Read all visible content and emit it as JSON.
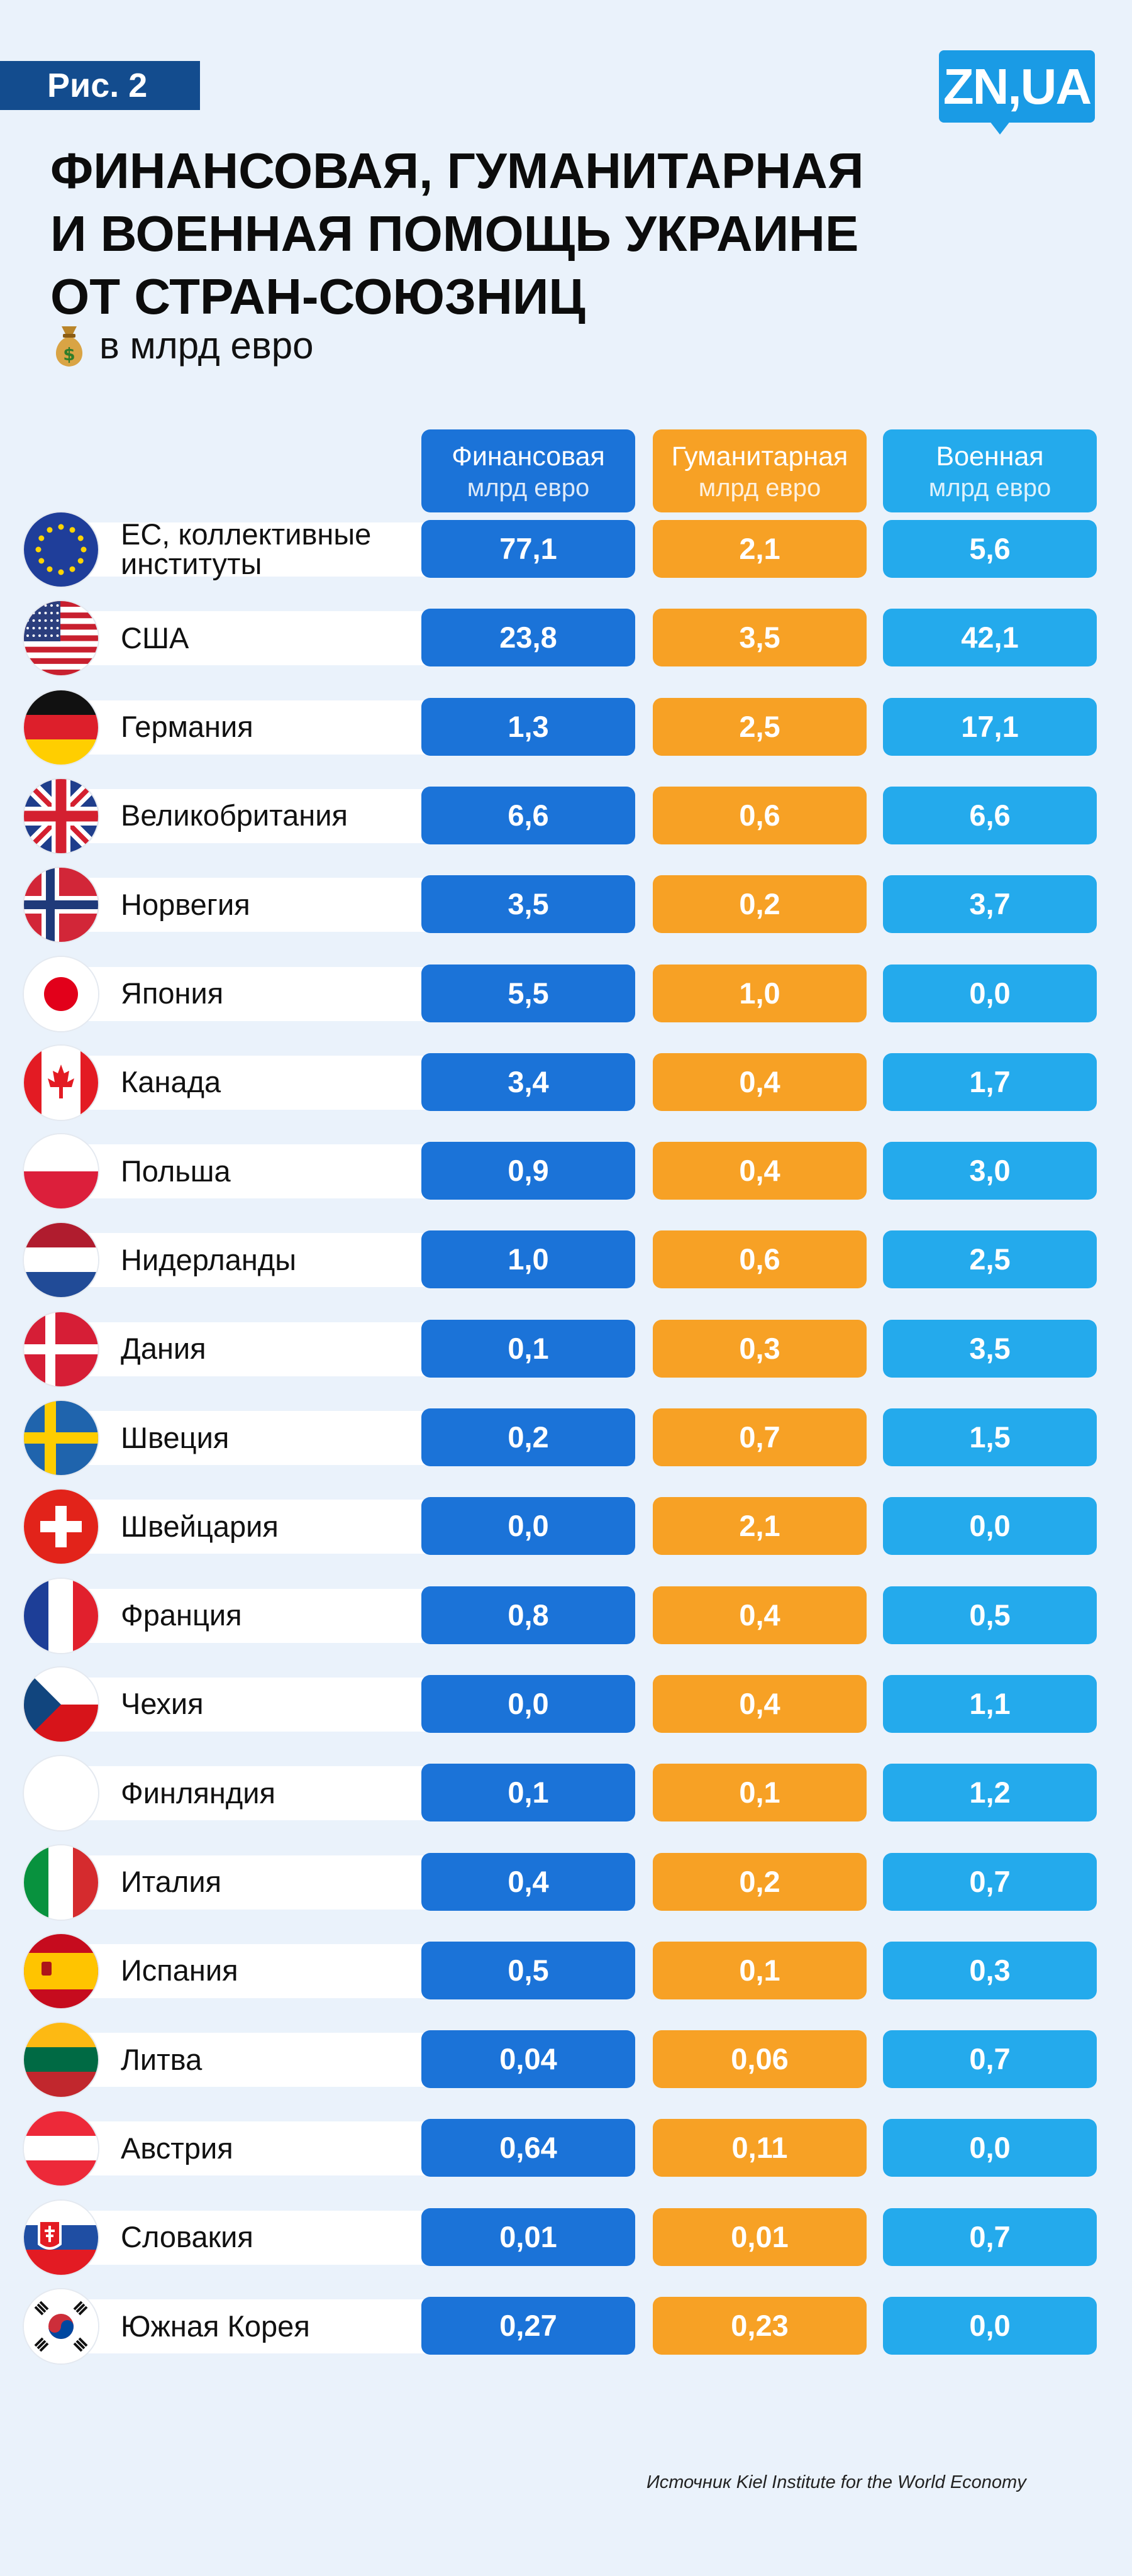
{
  "figure_label": "Рис. 2",
  "logo_text": "ZN,UA",
  "title_lines": [
    "ФИНАНСОВАЯ, ГУМАНИТАРНАЯ",
    "И ВОЕННАЯ ПОМОЩЬ УКРАИНЕ",
    "ОТ СТРАН-СОЮЗНИЦ"
  ],
  "subtitle": "в млрд евро",
  "subtitle_icon": "money-bag-icon",
  "source": "Источник Kiel Institute for the World Economy",
  "colors": {
    "financial": "#1b73d8",
    "humanitarian": "#f7a125",
    "military": "#24aaec",
    "background": "#eaf2fb"
  },
  "columns": [
    {
      "key": "financial",
      "name": "Финансовая",
      "unit": "млрд евро"
    },
    {
      "key": "humanitarian",
      "name": "Гуманитарная",
      "unit": "млрд евро"
    },
    {
      "key": "military",
      "name": "Военная",
      "unit": "млрд евро"
    }
  ],
  "chart_data": {
    "type": "table",
    "title": "ФИНАНСОВАЯ, ГУМАНИТАРНАЯ И ВОЕННАЯ ПОМОЩЬ УКРАИНЕ ОТ СТРАН-СОЮЗНИЦ",
    "subtitle": "в млрд евро",
    "columns": [
      "Финансовая",
      "Гуманитарная",
      "Военная"
    ],
    "rows": [
      {
        "flag": "eu-flag-icon",
        "name": "ЕС, коллективные институты",
        "financial": "77,1",
        "humanitarian": "2,1",
        "military": "5,6"
      },
      {
        "flag": "usa-flag-icon",
        "name": "США",
        "financial": "23,8",
        "humanitarian": "3,5",
        "military": "42,1"
      },
      {
        "flag": "germany-flag-icon",
        "name": "Германия",
        "financial": "1,3",
        "humanitarian": "2,5",
        "military": "17,1"
      },
      {
        "flag": "uk-flag-icon",
        "name": "Великобритания",
        "financial": "6,6",
        "humanitarian": "0,6",
        "military": "6,6"
      },
      {
        "flag": "norway-flag-icon",
        "name": "Норвегия",
        "financial": "3,5",
        "humanitarian": "0,2",
        "military": "3,7"
      },
      {
        "flag": "japan-flag-icon",
        "name": "Япония",
        "financial": "5,5",
        "humanitarian": "1,0",
        "military": "0,0"
      },
      {
        "flag": "canada-flag-icon",
        "name": "Канада",
        "financial": "3,4",
        "humanitarian": "0,4",
        "military": "1,7"
      },
      {
        "flag": "poland-flag-icon",
        "name": "Польша",
        "financial": "0,9",
        "humanitarian": "0,4",
        "military": "3,0"
      },
      {
        "flag": "netherlands-flag-icon",
        "name": "Нидерланды",
        "financial": "1,0",
        "humanitarian": "0,6",
        "military": "2,5"
      },
      {
        "flag": "denmark-flag-icon",
        "name": "Дания",
        "financial": "0,1",
        "humanitarian": "0,3",
        "military": "3,5"
      },
      {
        "flag": "sweden-flag-icon",
        "name": "Швеция",
        "financial": "0,2",
        "humanitarian": "0,7",
        "military": "1,5"
      },
      {
        "flag": "switzerland-flag-icon",
        "name": "Швейцария",
        "financial": "0,0",
        "humanitarian": "2,1",
        "military": "0,0"
      },
      {
        "flag": "france-flag-icon",
        "name": "Франция",
        "financial": "0,8",
        "humanitarian": "0,4",
        "military": "0,5"
      },
      {
        "flag": "czechia-flag-icon",
        "name": "Чехия",
        "financial": "0,0",
        "humanitarian": "0,4",
        "military": "1,1"
      },
      {
        "flag": "finland-flag-icon",
        "name": "Финляндия",
        "financial": "0,1",
        "humanitarian": "0,1",
        "military": "1,2"
      },
      {
        "flag": "italy-flag-icon",
        "name": "Италия",
        "financial": "0,4",
        "humanitarian": "0,2",
        "military": "0,7"
      },
      {
        "flag": "spain-flag-icon",
        "name": "Испания",
        "financial": "0,5",
        "humanitarian": "0,1",
        "military": "0,3"
      },
      {
        "flag": "lithuania-flag-icon",
        "name": "Литва",
        "financial": "0,04",
        "humanitarian": "0,06",
        "military": "0,7"
      },
      {
        "flag": "austria-flag-icon",
        "name": "Австрия",
        "financial": "0,64",
        "humanitarian": "0,11",
        "military": "0,0"
      },
      {
        "flag": "slovakia-flag-icon",
        "name": "Словакия",
        "financial": "0,01",
        "humanitarian": "0,01",
        "military": "0,7"
      },
      {
        "flag": "south-korea-flag-icon",
        "name": "Южная Корея",
        "financial": "0,27",
        "humanitarian": "0,23",
        "military": "0,0"
      }
    ]
  }
}
